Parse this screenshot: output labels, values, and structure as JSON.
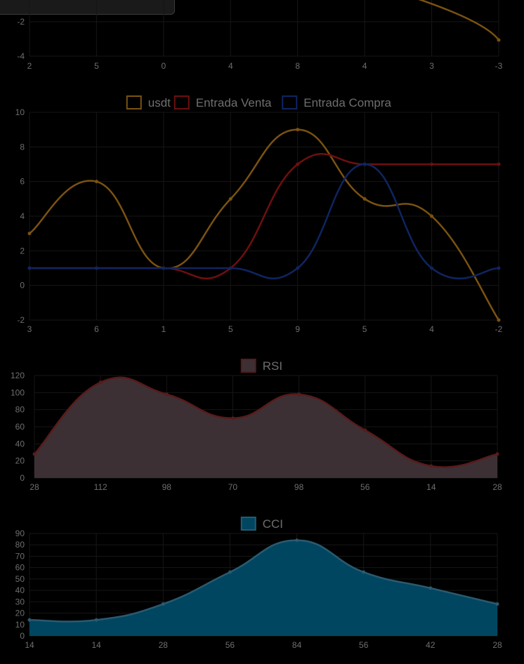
{
  "chart_data": [
    {
      "type": "line",
      "categories": [
        "2",
        "5",
        "0",
        "4",
        "8",
        "4",
        "3",
        "-3"
      ],
      "y_ticks": [
        "-4",
        "-2"
      ],
      "series": [
        {
          "color": "#7a5210",
          "values_visible": {
            "6": 1.2,
            "7": -3.0
          }
        }
      ]
    },
    {
      "type": "line",
      "categories": [
        "3",
        "6",
        "1",
        "5",
        "9",
        "5",
        "4",
        "-2"
      ],
      "y_ticks": [
        "-2",
        "0",
        "2",
        "4",
        "6",
        "8",
        "10"
      ],
      "ylim": [
        -2,
        10
      ],
      "legend": "top",
      "series": [
        {
          "name": "usdt",
          "color": "#7a5210",
          "values": [
            3,
            6,
            1,
            5,
            9,
            5,
            4,
            -2
          ]
        },
        {
          "name": "Entrada Venta",
          "color": "#6e0f0f",
          "values": [
            1,
            1,
            1,
            1,
            7,
            7,
            7,
            7
          ]
        },
        {
          "name": "Entrada Compra",
          "color": "#0f2560",
          "values": [
            1,
            1,
            1,
            1,
            1,
            7,
            1,
            1
          ]
        }
      ]
    },
    {
      "type": "area",
      "categories": [
        "28",
        "112",
        "98",
        "70",
        "98",
        "56",
        "14",
        "28"
      ],
      "y_ticks": [
        "0",
        "20",
        "40",
        "60",
        "80",
        "100",
        "120"
      ],
      "ylim": [
        0,
        120
      ],
      "legend": "top",
      "series": [
        {
          "name": "RSI",
          "color": "#5a1a1a",
          "fill": "#3d3035",
          "values": [
            28,
            112,
            98,
            70,
            98,
            56,
            14,
            28
          ]
        }
      ]
    },
    {
      "type": "area",
      "categories": [
        "14",
        "14",
        "28",
        "56",
        "84",
        "56",
        "42",
        "28"
      ],
      "y_ticks": [
        "0",
        "10",
        "20",
        "30",
        "40",
        "50",
        "60",
        "70",
        "80",
        "90"
      ],
      "ylim": [
        0,
        90
      ],
      "legend": "top",
      "series": [
        {
          "name": "CCI",
          "color": "#2a5a70",
          "fill": "#004660",
          "values": [
            14,
            14,
            28,
            56,
            84,
            56,
            42,
            28
          ]
        }
      ]
    }
  ]
}
